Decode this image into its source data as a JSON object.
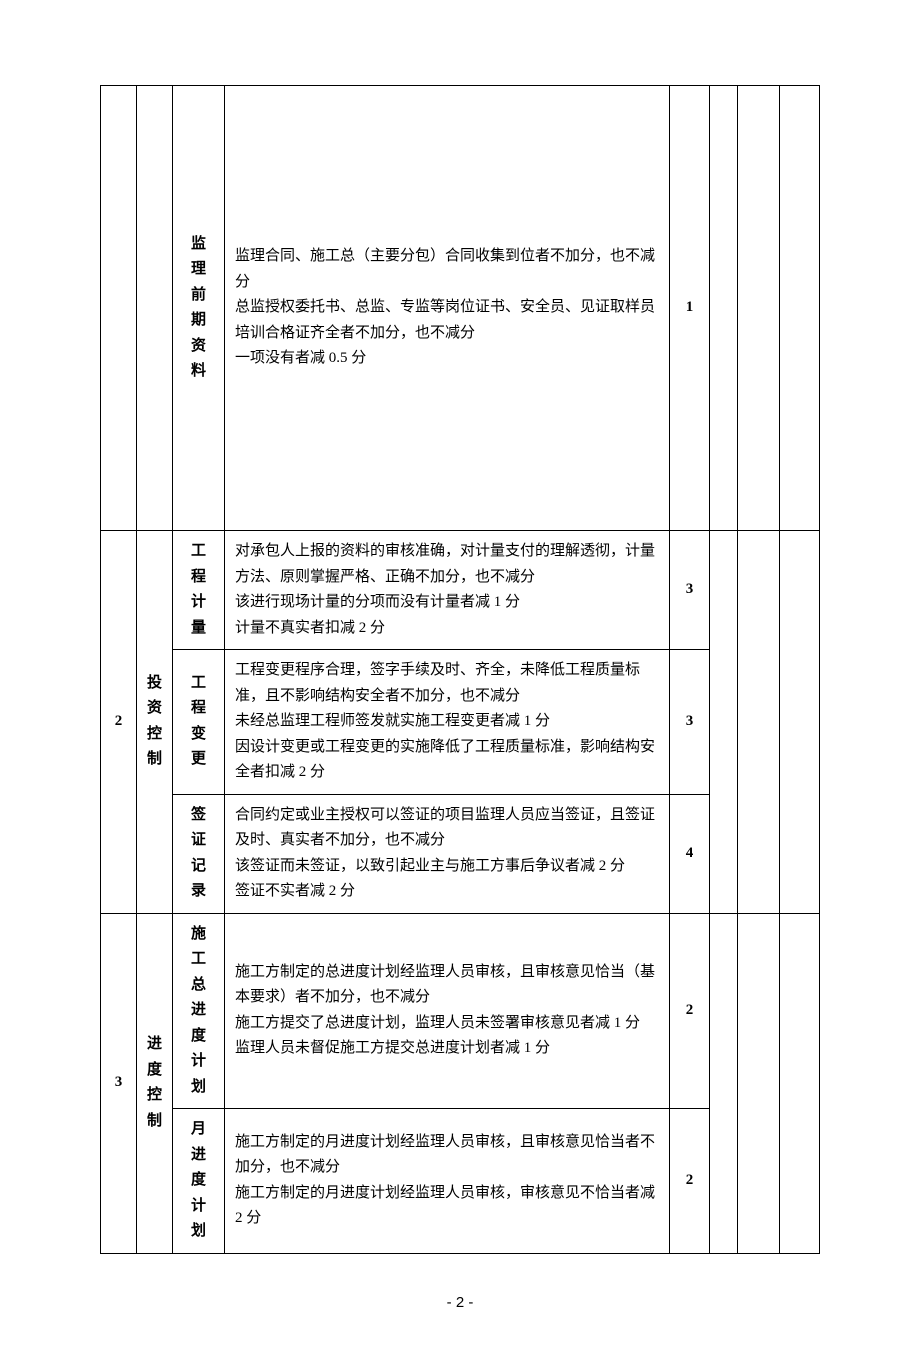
{
  "page_number": "- 2 -",
  "table": {
    "border_color": "#000000",
    "font_size_pt": 11,
    "line_height": 1.7,
    "rows": [
      {
        "num": "",
        "category": "",
        "subcategory": "监理前期资料",
        "description": "监理合同、施工总（主要分包）合同收集到位者不加分，也不减分\n总监授权委托书、总监、专监等岗位证书、安全员、见证取样员培训合格证齐全者不加分，也不减分\n一项没有者减 0.5 分",
        "score": "1",
        "tall": true
      },
      {
        "num": "2",
        "category": "投资控制",
        "cat_rowspan": 3,
        "num_rowspan": 3,
        "subcategory": "工程计量",
        "description": "对承包人上报的资料的审核准确，对计量支付的理解透彻，计量方法、原则掌握严格、正确不加分，也不减分\n该进行现场计量的分项而没有计量者减 1 分\n计量不真实者扣减 2 分",
        "score": "3"
      },
      {
        "subcategory": "工程变更",
        "description": "工程变更程序合理，签字手续及时、齐全，未降低工程质量标准，且不影响结构安全者不加分，也不减分\n未经总监理工程师签发就实施工程变更者减 1 分\n因设计变更或工程变更的实施降低了工程质量标准，影响结构安全者扣减 2 分",
        "score": "3"
      },
      {
        "subcategory": "签证记录",
        "description": "合同约定或业主授权可以签证的项目监理人员应当签证，且签证及时、真实者不加分，也不减分\n该签证而未签证，以致引起业主与施工方事后争议者减 2 分\n签证不实者减 2 分",
        "score": "4"
      },
      {
        "num": "3",
        "category": "进度控制",
        "cat_rowspan": 2,
        "num_rowspan": 2,
        "subcategory": "施工总进度计划",
        "description": "施工方制定的总进度计划经监理人员审核，且审核意见恰当（基本要求）者不加分，也不减分\n施工方提交了总进度计划，监理人员未签署审核意见者减 1 分\n监理人员未督促施工方提交总进度计划者减 1 分",
        "score": "2"
      },
      {
        "subcategory": "月进度计划",
        "description": "施工方制定的月进度计划经监理人员审核，且审核意见恰当者不加分，也不减分\n施工方制定的月进度计划经监理人员审核，审核意见不恰当者减 2 分",
        "score": "2"
      }
    ]
  }
}
